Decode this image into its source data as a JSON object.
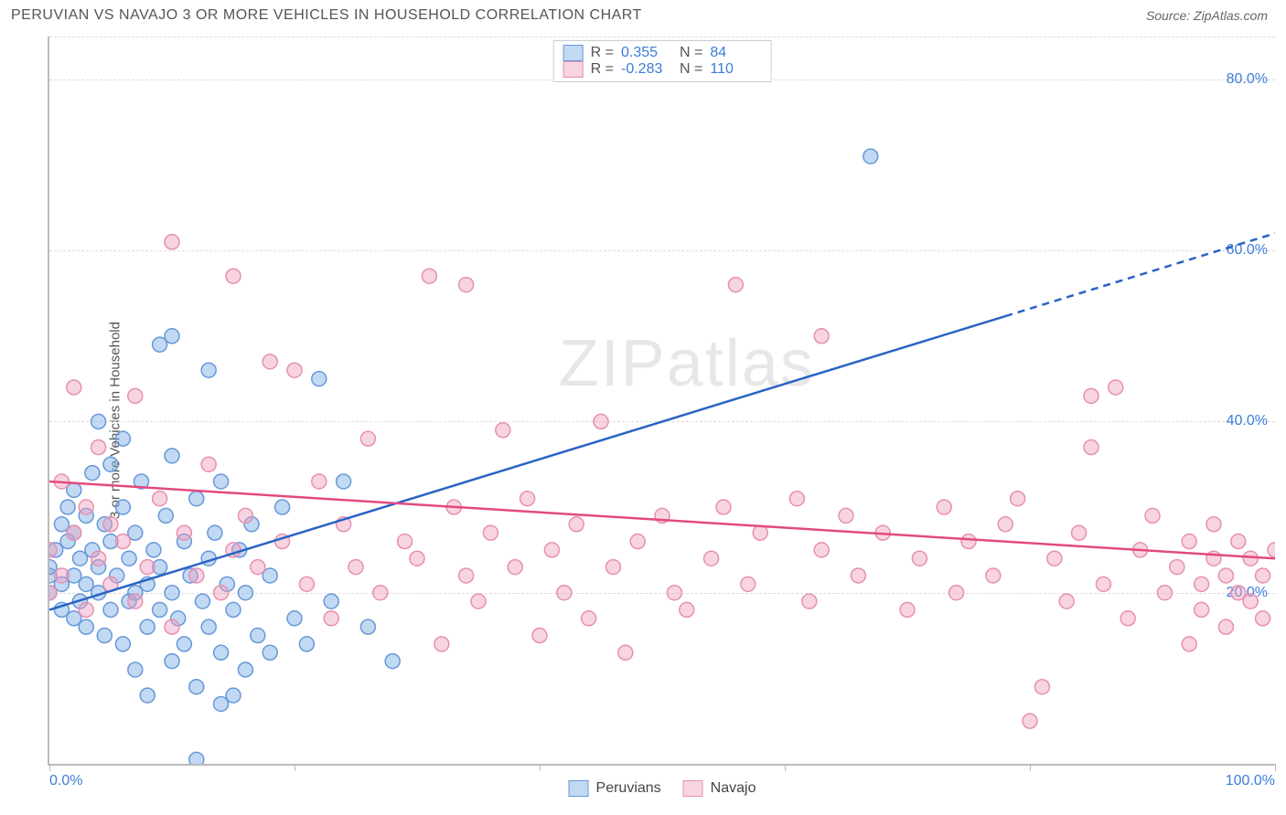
{
  "title": "PERUVIAN VS NAVAJO 3 OR MORE VEHICLES IN HOUSEHOLD CORRELATION CHART",
  "source": "Source: ZipAtlas.com",
  "ylabel": "3 or more Vehicles in Household",
  "watermark_bold": "ZIP",
  "watermark_thin": "atlas",
  "chart": {
    "type": "scatter",
    "xlim": [
      0,
      100
    ],
    "ylim": [
      0,
      85
    ],
    "xticks": [
      0,
      20,
      40,
      60,
      80,
      100
    ],
    "xtick_labels": [
      "0.0%",
      "",
      "",
      "",
      "",
      "100.0%"
    ],
    "yticks": [
      20,
      40,
      60,
      80
    ],
    "ytick_labels": [
      "20.0%",
      "40.0%",
      "60.0%",
      "80.0%"
    ],
    "background": "#ffffff",
    "grid_color": "#dddddd",
    "axis_color": "#bbbbbb",
    "tick_label_color": "#3b7dd8",
    "marker_radius": 8,
    "marker_stroke_width": 1.5,
    "line_width": 2.5,
    "series": [
      {
        "name": "Peruvians",
        "fill": "rgba(120,170,230,0.45)",
        "stroke": "#6798d8",
        "line_stroke": "#2a63c4",
        "R": "0.355",
        "N": "84",
        "trend": {
          "x1": 0,
          "y1": 18,
          "x2": 100,
          "y2": 62,
          "solid_until_x": 78
        },
        "points": [
          [
            0,
            20
          ],
          [
            0,
            22
          ],
          [
            0,
            23
          ],
          [
            0.5,
            25
          ],
          [
            1,
            21
          ],
          [
            1,
            18
          ],
          [
            1,
            28
          ],
          [
            1.5,
            26
          ],
          [
            1.5,
            30
          ],
          [
            2,
            22
          ],
          [
            2,
            17
          ],
          [
            2,
            32
          ],
          [
            2,
            27
          ],
          [
            2.5,
            19
          ],
          [
            2.5,
            24
          ],
          [
            3,
            29
          ],
          [
            3,
            16
          ],
          [
            3,
            21
          ],
          [
            3.5,
            25
          ],
          [
            3.5,
            34
          ],
          [
            4,
            20
          ],
          [
            4,
            23
          ],
          [
            4,
            40
          ],
          [
            4.5,
            15
          ],
          [
            4.5,
            28
          ],
          [
            5,
            26
          ],
          [
            5,
            18
          ],
          [
            5,
            35
          ],
          [
            5.5,
            22
          ],
          [
            6,
            30
          ],
          [
            6,
            14
          ],
          [
            6,
            38
          ],
          [
            6.5,
            19
          ],
          [
            6.5,
            24
          ],
          [
            7,
            20
          ],
          [
            7,
            27
          ],
          [
            7,
            11
          ],
          [
            7.5,
            33
          ],
          [
            8,
            16
          ],
          [
            8,
            21
          ],
          [
            8,
            8
          ],
          [
            8.5,
            25
          ],
          [
            9,
            18
          ],
          [
            9,
            23
          ],
          [
            9,
            49
          ],
          [
            9.5,
            29
          ],
          [
            10,
            12
          ],
          [
            10,
            20
          ],
          [
            10,
            50
          ],
          [
            10,
            36
          ],
          [
            10.5,
            17
          ],
          [
            11,
            26
          ],
          [
            11,
            14
          ],
          [
            11.5,
            22
          ],
          [
            12,
            31
          ],
          [
            12,
            9
          ],
          [
            12,
            0.5
          ],
          [
            12.5,
            19
          ],
          [
            13,
            24
          ],
          [
            13,
            46
          ],
          [
            13,
            16
          ],
          [
            13.5,
            27
          ],
          [
            14,
            13
          ],
          [
            14,
            33
          ],
          [
            14,
            7
          ],
          [
            14.5,
            21
          ],
          [
            15,
            18
          ],
          [
            15,
            8
          ],
          [
            15.5,
            25
          ],
          [
            16,
            11
          ],
          [
            16,
            20
          ],
          [
            16.5,
            28
          ],
          [
            17,
            15
          ],
          [
            18,
            13
          ],
          [
            18,
            22
          ],
          [
            19,
            30
          ],
          [
            20,
            17
          ],
          [
            21,
            14
          ],
          [
            22,
            45
          ],
          [
            23,
            19
          ],
          [
            24,
            33
          ],
          [
            26,
            16
          ],
          [
            28,
            12
          ],
          [
            67,
            71
          ]
        ]
      },
      {
        "name": "Navajo",
        "fill": "rgba(240,160,190,0.45)",
        "stroke": "#e78fb0",
        "line_stroke": "#e24a80",
        "R": "-0.283",
        "N": "110",
        "trend": {
          "x1": 0,
          "y1": 33,
          "x2": 100,
          "y2": 24,
          "solid_until_x": 100
        },
        "points": [
          [
            0,
            20
          ],
          [
            0,
            25
          ],
          [
            1,
            22
          ],
          [
            1,
            33
          ],
          [
            2,
            27
          ],
          [
            2,
            44
          ],
          [
            3,
            18
          ],
          [
            3,
            30
          ],
          [
            4,
            24
          ],
          [
            4,
            37
          ],
          [
            5,
            21
          ],
          [
            5,
            28
          ],
          [
            6,
            26
          ],
          [
            7,
            19
          ],
          [
            7,
            43
          ],
          [
            8,
            23
          ],
          [
            9,
            31
          ],
          [
            10,
            16
          ],
          [
            10,
            61
          ],
          [
            11,
            27
          ],
          [
            12,
            22
          ],
          [
            13,
            35
          ],
          [
            14,
            20
          ],
          [
            15,
            25
          ],
          [
            15,
            57
          ],
          [
            16,
            29
          ],
          [
            17,
            23
          ],
          [
            18,
            47
          ],
          [
            19,
            26
          ],
          [
            20,
            46
          ],
          [
            21,
            21
          ],
          [
            22,
            33
          ],
          [
            23,
            17
          ],
          [
            24,
            28
          ],
          [
            25,
            23
          ],
          [
            26,
            38
          ],
          [
            27,
            20
          ],
          [
            29,
            26
          ],
          [
            30,
            24
          ],
          [
            31,
            57
          ],
          [
            32,
            14
          ],
          [
            33,
            30
          ],
          [
            34,
            22
          ],
          [
            34,
            56
          ],
          [
            35,
            19
          ],
          [
            36,
            27
          ],
          [
            37,
            39
          ],
          [
            38,
            23
          ],
          [
            39,
            31
          ],
          [
            40,
            15
          ],
          [
            41,
            25
          ],
          [
            42,
            20
          ],
          [
            43,
            28
          ],
          [
            44,
            17
          ],
          [
            45,
            40
          ],
          [
            46,
            23
          ],
          [
            47,
            13
          ],
          [
            48,
            26
          ],
          [
            50,
            29
          ],
          [
            51,
            20
          ],
          [
            52,
            18
          ],
          [
            54,
            24
          ],
          [
            55,
            30
          ],
          [
            56,
            56
          ],
          [
            57,
            21
          ],
          [
            58,
            27
          ],
          [
            61,
            31
          ],
          [
            62,
            19
          ],
          [
            63,
            25
          ],
          [
            63,
            50
          ],
          [
            65,
            29
          ],
          [
            66,
            22
          ],
          [
            68,
            27
          ],
          [
            70,
            18
          ],
          [
            71,
            24
          ],
          [
            73,
            30
          ],
          [
            74,
            20
          ],
          [
            75,
            26
          ],
          [
            77,
            22
          ],
          [
            78,
            28
          ],
          [
            79,
            31
          ],
          [
            80,
            5
          ],
          [
            81,
            9
          ],
          [
            82,
            24
          ],
          [
            83,
            19
          ],
          [
            84,
            27
          ],
          [
            85,
            43
          ],
          [
            85,
            37
          ],
          [
            86,
            21
          ],
          [
            87,
            44
          ],
          [
            88,
            17
          ],
          [
            89,
            25
          ],
          [
            90,
            29
          ],
          [
            91,
            20
          ],
          [
            92,
            23
          ],
          [
            93,
            14
          ],
          [
            93,
            26
          ],
          [
            94,
            21
          ],
          [
            94,
            18
          ],
          [
            95,
            24
          ],
          [
            95,
            28
          ],
          [
            96,
            16
          ],
          [
            96,
            22
          ],
          [
            97,
            20
          ],
          [
            97,
            26
          ],
          [
            98,
            24
          ],
          [
            98,
            19
          ],
          [
            99,
            22
          ],
          [
            99,
            17
          ],
          [
            100,
            25
          ]
        ]
      }
    ]
  },
  "legend_bottom": [
    "Peruvians",
    "Navajo"
  ]
}
